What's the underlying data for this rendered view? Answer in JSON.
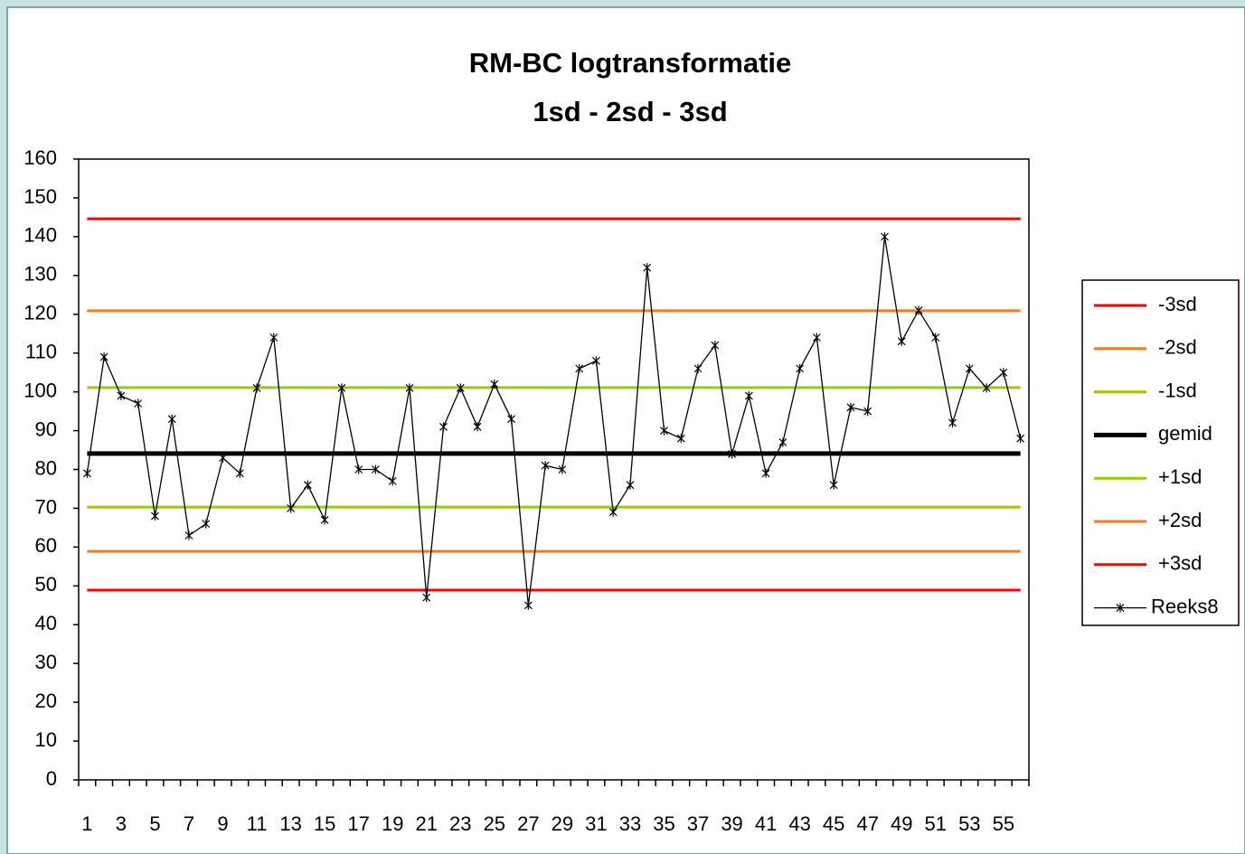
{
  "chart_data": {
    "type": "line",
    "title": "RM-BC logtransformatie",
    "subtitle": "1sd - 2sd - 3sd",
    "categories": [
      1,
      null,
      3,
      null,
      5,
      null,
      7,
      null,
      9,
      null,
      11,
      null,
      13,
      null,
      15,
      null,
      17,
      null,
      19,
      null,
      21,
      null,
      23,
      null,
      25,
      null,
      27,
      null,
      29,
      null,
      31,
      null,
      33,
      null,
      35,
      null,
      37,
      null,
      39,
      null,
      41,
      null,
      43,
      null,
      45,
      null,
      47,
      null,
      49,
      null,
      51,
      null,
      53,
      null,
      55,
      null
    ],
    "ylim": [
      0,
      160
    ],
    "yticks": [
      0,
      10,
      20,
      30,
      40,
      50,
      60,
      70,
      80,
      90,
      100,
      110,
      120,
      130,
      140,
      150,
      160
    ],
    "grid": false,
    "legend": "right",
    "series": [
      {
        "name": "-3sd",
        "color": "#ff0000",
        "values": [
          144.6,
          144.6,
          144.6,
          144.6,
          144.6,
          144.6,
          144.6,
          144.6,
          144.6,
          144.6,
          144.6,
          144.6,
          144.6,
          144.6,
          144.6,
          144.6,
          144.6,
          144.6,
          144.6,
          144.6,
          144.6,
          144.6,
          144.6,
          144.6,
          144.6,
          144.6,
          144.6,
          144.6,
          144.6,
          144.6,
          144.6,
          144.6,
          144.6,
          144.6,
          144.6,
          144.6,
          144.6,
          144.6,
          144.6,
          144.6,
          144.6,
          144.6,
          144.6,
          144.6,
          144.6,
          144.6,
          144.6,
          144.6,
          144.6,
          144.6,
          144.6,
          144.6,
          144.6,
          144.6,
          144.6,
          144.6
        ]
      },
      {
        "name": "-2sd",
        "color": "#f57a1e",
        "values": [
          120.9,
          120.9,
          120.9,
          120.9,
          120.9,
          120.9,
          120.9,
          120.9,
          120.9,
          120.9,
          120.9,
          120.9,
          120.9,
          120.9,
          120.9,
          120.9,
          120.9,
          120.9,
          120.9,
          120.9,
          120.9,
          120.9,
          120.9,
          120.9,
          120.9,
          120.9,
          120.9,
          120.9,
          120.9,
          120.9,
          120.9,
          120.9,
          120.9,
          120.9,
          120.9,
          120.9,
          120.9,
          120.9,
          120.9,
          120.9,
          120.9,
          120.9,
          120.9,
          120.9,
          120.9,
          120.9,
          120.9,
          120.9,
          120.9,
          120.9,
          120.9,
          120.9,
          120.9,
          120.9,
          120.9,
          120.9
        ]
      },
      {
        "name": "-1sd",
        "color": "#99cc00",
        "values": [
          101.1,
          101.1,
          101.1,
          101.1,
          101.1,
          101.1,
          101.1,
          101.1,
          101.1,
          101.1,
          101.1,
          101.1,
          101.1,
          101.1,
          101.1,
          101.1,
          101.1,
          101.1,
          101.1,
          101.1,
          101.1,
          101.1,
          101.1,
          101.1,
          101.1,
          101.1,
          101.1,
          101.1,
          101.1,
          101.1,
          101.1,
          101.1,
          101.1,
          101.1,
          101.1,
          101.1,
          101.1,
          101.1,
          101.1,
          101.1,
          101.1,
          101.1,
          101.1,
          101.1,
          101.1,
          101.1,
          101.1,
          101.1,
          101.1,
          101.1,
          101.1,
          101.1,
          101.1,
          101.1,
          101.1,
          101.1
        ]
      },
      {
        "name": "gemid",
        "color": "#000000",
        "values": [
          84.1,
          84.1,
          84.1,
          84.1,
          84.1,
          84.1,
          84.1,
          84.1,
          84.1,
          84.1,
          84.1,
          84.1,
          84.1,
          84.1,
          84.1,
          84.1,
          84.1,
          84.1,
          84.1,
          84.1,
          84.1,
          84.1,
          84.1,
          84.1,
          84.1,
          84.1,
          84.1,
          84.1,
          84.1,
          84.1,
          84.1,
          84.1,
          84.1,
          84.1,
          84.1,
          84.1,
          84.1,
          84.1,
          84.1,
          84.1,
          84.1,
          84.1,
          84.1,
          84.1,
          84.1,
          84.1,
          84.1,
          84.1,
          84.1,
          84.1,
          84.1,
          84.1,
          84.1,
          84.1,
          84.1,
          84.1
        ]
      },
      {
        "name": "+1sd",
        "color": "#99cc00",
        "values": [
          70.3,
          70.3,
          70.3,
          70.3,
          70.3,
          70.3,
          70.3,
          70.3,
          70.3,
          70.3,
          70.3,
          70.3,
          70.3,
          70.3,
          70.3,
          70.3,
          70.3,
          70.3,
          70.3,
          70.3,
          70.3,
          70.3,
          70.3,
          70.3,
          70.3,
          70.3,
          70.3,
          70.3,
          70.3,
          70.3,
          70.3,
          70.3,
          70.3,
          70.3,
          70.3,
          70.3,
          70.3,
          70.3,
          70.3,
          70.3,
          70.3,
          70.3,
          70.3,
          70.3,
          70.3,
          70.3,
          70.3,
          70.3,
          70.3,
          70.3,
          70.3,
          70.3,
          70.3,
          70.3,
          70.3,
          70.3
        ]
      },
      {
        "name": "+2sd",
        "color": "#f57a1e",
        "values": [
          58.9,
          58.9,
          58.9,
          58.9,
          58.9,
          58.9,
          58.9,
          58.9,
          58.9,
          58.9,
          58.9,
          58.9,
          58.9,
          58.9,
          58.9,
          58.9,
          58.9,
          58.9,
          58.9,
          58.9,
          58.9,
          58.9,
          58.9,
          58.9,
          58.9,
          58.9,
          58.9,
          58.9,
          58.9,
          58.9,
          58.9,
          58.9,
          58.9,
          58.9,
          58.9,
          58.9,
          58.9,
          58.9,
          58.9,
          58.9,
          58.9,
          58.9,
          58.9,
          58.9,
          58.9,
          58.9,
          58.9,
          58.9,
          58.9,
          58.9,
          58.9,
          58.9,
          58.9,
          58.9,
          58.9,
          58.9
        ]
      },
      {
        "name": "+3sd",
        "color": "#ff0000",
        "values": [
          48.9,
          48.9,
          48.9,
          48.9,
          48.9,
          48.9,
          48.9,
          48.9,
          48.9,
          48.9,
          48.9,
          48.9,
          48.9,
          48.9,
          48.9,
          48.9,
          48.9,
          48.9,
          48.9,
          48.9,
          48.9,
          48.9,
          48.9,
          48.9,
          48.9,
          48.9,
          48.9,
          48.9,
          48.9,
          48.9,
          48.9,
          48.9,
          48.9,
          48.9,
          48.9,
          48.9,
          48.9,
          48.9,
          48.9,
          48.9,
          48.9,
          48.9,
          48.9,
          48.9,
          48.9,
          48.9,
          48.9,
          48.9,
          48.9,
          48.9,
          48.9,
          48.9,
          48.9,
          48.9,
          48.9,
          48.9
        ]
      },
      {
        "name": "Reeks8",
        "color": "#000000",
        "marker": "star",
        "values": [
          79,
          109,
          99,
          97,
          68,
          93,
          63,
          66,
          83,
          79,
          101,
          114,
          70,
          76,
          67,
          101,
          80,
          80,
          77,
          101,
          47,
          91,
          101,
          91,
          102,
          93,
          45,
          81,
          80,
          106,
          108,
          69,
          76,
          132,
          90,
          88,
          106,
          112,
          84,
          99,
          79,
          87,
          106,
          114,
          76,
          96,
          95,
          140,
          113,
          121,
          114,
          92,
          106,
          101,
          105,
          88
        ]
      }
    ]
  }
}
